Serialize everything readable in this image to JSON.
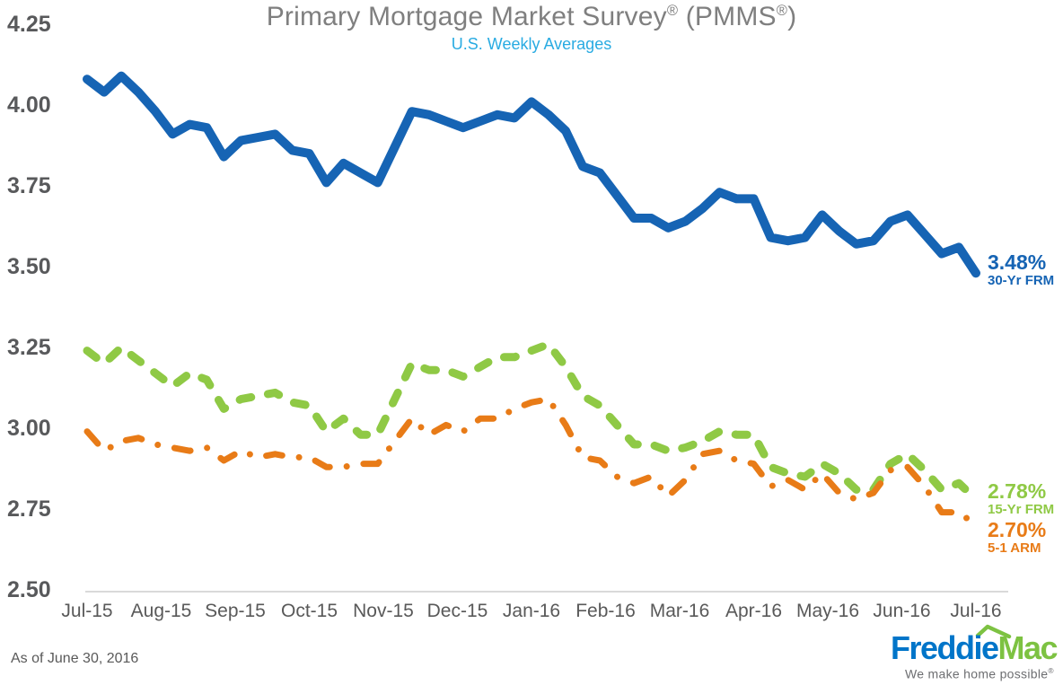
{
  "header": {
    "title_main": "Primary Mortgage Market Survey",
    "title_reg1": "®",
    "title_mid": " (PMMS",
    "title_reg2": "®",
    "title_end": ")",
    "subtitle": "U.S. Weekly Averages"
  },
  "colors": {
    "title": "#7F7F7F",
    "subtitle": "#29ABE2",
    "y_axis_text": "#58595B",
    "x_axis_text": "#595959",
    "axis_line": "#D9D9D9",
    "background": "#FFFFFF",
    "line_30yr": "#1664B4",
    "line_15yr": "#8FC945",
    "line_arm": "#E87B17"
  },
  "chart_data": {
    "type": "line",
    "title": "Primary Mortgage Market Survey® (PMMS®)",
    "subtitle": "U.S. Weekly Averages",
    "x_tick_labels": [
      "Jul-15",
      "Aug-15",
      "Sep-15",
      "Oct-15",
      "Nov-15",
      "Dec-15",
      "Jan-16",
      "Feb-16",
      "Mar-16",
      "Apr-16",
      "May-16",
      "Jun-16",
      "Jul-16"
    ],
    "y_tick_labels": [
      "4.25",
      "4.00",
      "3.75",
      "3.50",
      "3.25",
      "3.00",
      "2.75",
      "2.50"
    ],
    "ylim": [
      2.5,
      4.25
    ],
    "x_unit": "weekly observations, Jul 2015 - Jun 2016",
    "grid": false,
    "legend_position": "right-end-of-line",
    "series": [
      {
        "name": "30-Yr FRM",
        "end_label": "3.48%",
        "color": "#1664B4",
        "style": "solid",
        "values": [
          4.08,
          4.04,
          4.09,
          4.04,
          3.98,
          3.91,
          3.94,
          3.93,
          3.84,
          3.89,
          3.9,
          3.91,
          3.86,
          3.85,
          3.76,
          3.82,
          3.79,
          3.76,
          3.87,
          3.98,
          3.97,
          3.95,
          3.93,
          3.95,
          3.97,
          3.96,
          4.01,
          3.97,
          3.92,
          3.81,
          3.79,
          3.72,
          3.65,
          3.65,
          3.62,
          3.64,
          3.68,
          3.73,
          3.71,
          3.71,
          3.59,
          3.58,
          3.59,
          3.66,
          3.61,
          3.57,
          3.58,
          3.64,
          3.66,
          3.6,
          3.54,
          3.56,
          3.48
        ]
      },
      {
        "name": "15-Yr FRM",
        "end_label": "2.78%",
        "color": "#8FC945",
        "style": "dashed",
        "values": [
          3.24,
          3.2,
          3.25,
          3.21,
          3.17,
          3.13,
          3.17,
          3.15,
          3.06,
          3.09,
          3.1,
          3.11,
          3.08,
          3.07,
          2.99,
          3.03,
          2.98,
          2.98,
          3.09,
          3.2,
          3.18,
          3.18,
          3.16,
          3.19,
          3.22,
          3.22,
          3.24,
          3.26,
          3.19,
          3.1,
          3.07,
          3.01,
          2.95,
          2.95,
          2.93,
          2.94,
          2.96,
          2.99,
          2.98,
          2.98,
          2.88,
          2.86,
          2.85,
          2.89,
          2.86,
          2.81,
          2.81,
          2.89,
          2.92,
          2.87,
          2.81,
          2.83,
          2.78
        ]
      },
      {
        "name": "5-1 ARM",
        "end_label": "2.70%",
        "color": "#E87B17",
        "style": "dash-dot",
        "values": [
          2.99,
          2.93,
          2.96,
          2.97,
          2.95,
          2.94,
          2.93,
          2.94,
          2.9,
          2.93,
          2.91,
          2.92,
          2.91,
          2.91,
          2.88,
          2.88,
          2.89,
          2.89,
          2.96,
          3.03,
          2.98,
          3.01,
          2.99,
          3.03,
          3.03,
          3.06,
          3.08,
          3.09,
          3.01,
          2.91,
          2.9,
          2.85,
          2.83,
          2.85,
          2.79,
          2.84,
          2.92,
          2.93,
          2.9,
          2.89,
          2.82,
          2.84,
          2.81,
          2.86,
          2.8,
          2.78,
          2.8,
          2.87,
          2.88,
          2.82,
          2.74,
          2.74,
          2.7
        ]
      }
    ]
  },
  "footer": {
    "as_of": "As of June 30, 2016",
    "logo": {
      "word1": "Freddie",
      "word2": "Mac",
      "word1_color": "#0075C9",
      "word2_color": "#7DC242",
      "roof_color": "#7DC242",
      "tagline": "We make home possible",
      "tagline_reg": "®",
      "tagline_color": "#6D6E71"
    }
  }
}
